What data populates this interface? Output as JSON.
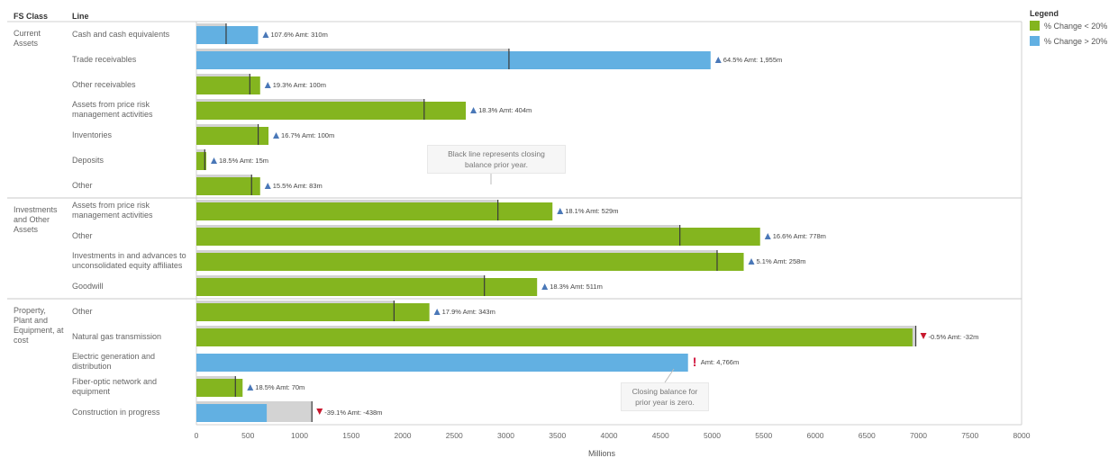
{
  "headers": {
    "fs_class": "FS Class",
    "line": "Line"
  },
  "legend": {
    "title": "Legend",
    "items": [
      {
        "label": "% Change < 20%",
        "color": "#84b51f"
      },
      {
        "label": "% Change > 20%",
        "color": "#62b0e2"
      }
    ]
  },
  "notes": {
    "black_line": "Black line represents closing\nbalance prior year.",
    "zero_prior": "Closing balance for\nprior year is zero."
  },
  "chart_data": {
    "type": "bar",
    "orientation": "horizontal",
    "xlabel": "Millions",
    "xlim": [
      0,
      8000
    ],
    "xticks": [
      0,
      500,
      1000,
      1500,
      2000,
      2500,
      3000,
      3500,
      4000,
      4500,
      5000,
      5500,
      6000,
      6500,
      7000,
      7500,
      8000
    ],
    "tick_labels": [
      "0",
      "500",
      "1000",
      "1500",
      "2000",
      "2500",
      "3000",
      "3500",
      "4000",
      "4500",
      "5000",
      "5500",
      "6000",
      "6500",
      "7000",
      "7500",
      "8000"
    ],
    "groups": [
      {
        "fs_class": "Current\nAssets",
        "rows": [
          {
            "line": "Cash and cash equivalents",
            "current": 598,
            "prior": 288,
            "label": "107.6% Amt: 310m",
            "dir": "up",
            "color": "#62b0e2"
          },
          {
            "line": "Trade receivables",
            "current": 4985,
            "prior": 3030,
            "label": "64.5% Amt: 1,955m",
            "dir": "up",
            "color": "#62b0e2"
          },
          {
            "line": "Other receivables",
            "current": 618,
            "prior": 518,
            "label": "19.3% Amt: 100m",
            "dir": "up",
            "color": "#84b51f"
          },
          {
            "line": "Assets from price risk\nmanagement activities",
            "current": 2612,
            "prior": 2208,
            "label": "18.3% Amt: 404m",
            "dir": "up",
            "color": "#84b51f"
          },
          {
            "line": "Inventories",
            "current": 699,
            "prior": 599,
            "label": "16.7% Amt: 100m",
            "dir": "up",
            "color": "#84b51f"
          },
          {
            "line": "Deposits",
            "current": 96,
            "prior": 81,
            "label": "18.5% Amt: 15m",
            "dir": "up",
            "color": "#84b51f"
          },
          {
            "line": "Other",
            "current": 618,
            "prior": 535,
            "label": "15.5% Amt: 83m",
            "dir": "up",
            "color": "#84b51f"
          }
        ]
      },
      {
        "fs_class": "Investments\nand Other\nAssets",
        "rows": [
          {
            "line": "Assets from price risk\nmanagement activities",
            "current": 3452,
            "prior": 2923,
            "label": "18.1% Amt: 529m",
            "dir": "up",
            "color": "#84b51f"
          },
          {
            "line": "Other",
            "current": 5465,
            "prior": 4687,
            "label": "16.6% Amt: 778m",
            "dir": "up",
            "color": "#84b51f"
          },
          {
            "line": "Investments in and advances to\nunconsolidated equity affiliates",
            "current": 5306,
            "prior": 5048,
            "label": "5.1% Amt: 258m",
            "dir": "up",
            "color": "#84b51f"
          },
          {
            "line": "Goodwill",
            "current": 3303,
            "prior": 2792,
            "label": "18.3% Amt: 511m",
            "dir": "up",
            "color": "#84b51f"
          }
        ]
      },
      {
        "fs_class": "Property,\nPlant and\nEquipment, at\ncost",
        "rows": [
          {
            "line": "Other",
            "current": 2259,
            "prior": 1916,
            "label": "17.9% Amt: 343m",
            "dir": "up",
            "color": "#84b51f"
          },
          {
            "line": "Natural gas transmission",
            "current": 6942,
            "prior": 6974,
            "label": "-0.5% Amt: -32m",
            "dir": "down",
            "color": "#84b51f"
          },
          {
            "line": "Electric generation and\ndistribution",
            "current": 4766,
            "prior": 0,
            "label": "Amt: 4,766m",
            "dir": "none",
            "color": "#62b0e2"
          },
          {
            "line": "Fiber-optic network and\nequipment",
            "current": 448,
            "prior": 378,
            "label": "18.5% Amt: 70m",
            "dir": "up",
            "color": "#84b51f"
          },
          {
            "line": "Construction in progress",
            "current": 682,
            "prior": 1120,
            "label": "-39.1% Amt: -438m",
            "dir": "down",
            "color": "#62b0e2"
          }
        ]
      }
    ]
  }
}
